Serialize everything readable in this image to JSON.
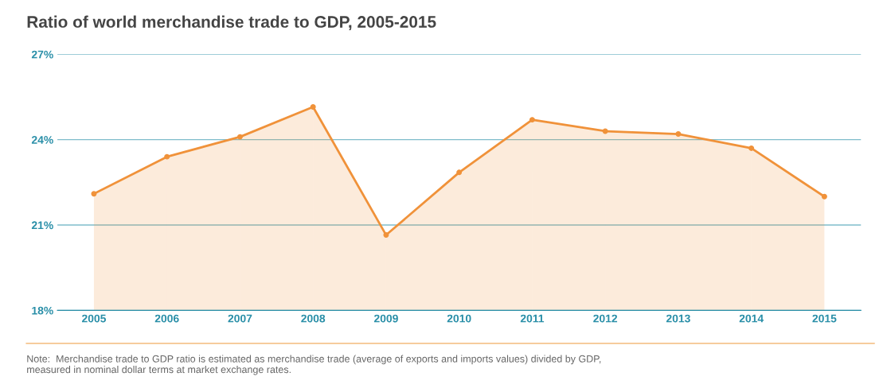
{
  "chart_data": {
    "type": "area",
    "title": "Ratio of world merchandise trade to GDP, 2005-2015",
    "categories": [
      "2005",
      "2006",
      "2007",
      "2008",
      "2009",
      "2010",
      "2011",
      "2012",
      "2013",
      "2014",
      "2015"
    ],
    "series": [
      {
        "color": "#f0923a",
        "values": [
          22.1,
          23.4,
          24.1,
          25.15,
          20.65,
          22.85,
          24.7,
          24.3,
          24.2,
          23.7,
          22.0
        ]
      }
    ],
    "ylim": [
      18,
      27
    ],
    "yticks": [
      {
        "value": 18,
        "label": "18%"
      },
      {
        "value": 21,
        "label": "21%"
      },
      {
        "value": 24,
        "label": "24%"
      },
      {
        "value": 27,
        "label": "27%"
      }
    ],
    "grid": "y",
    "marker": "circle",
    "line_style": "solid",
    "annotations": [
      "Note:  Merchandise trade to GDP ratio is estimated as merchandise trade (average of exports and imports values) divided by GDP, measured in nominal dollar terms at market exchange rates."
    ]
  }
}
